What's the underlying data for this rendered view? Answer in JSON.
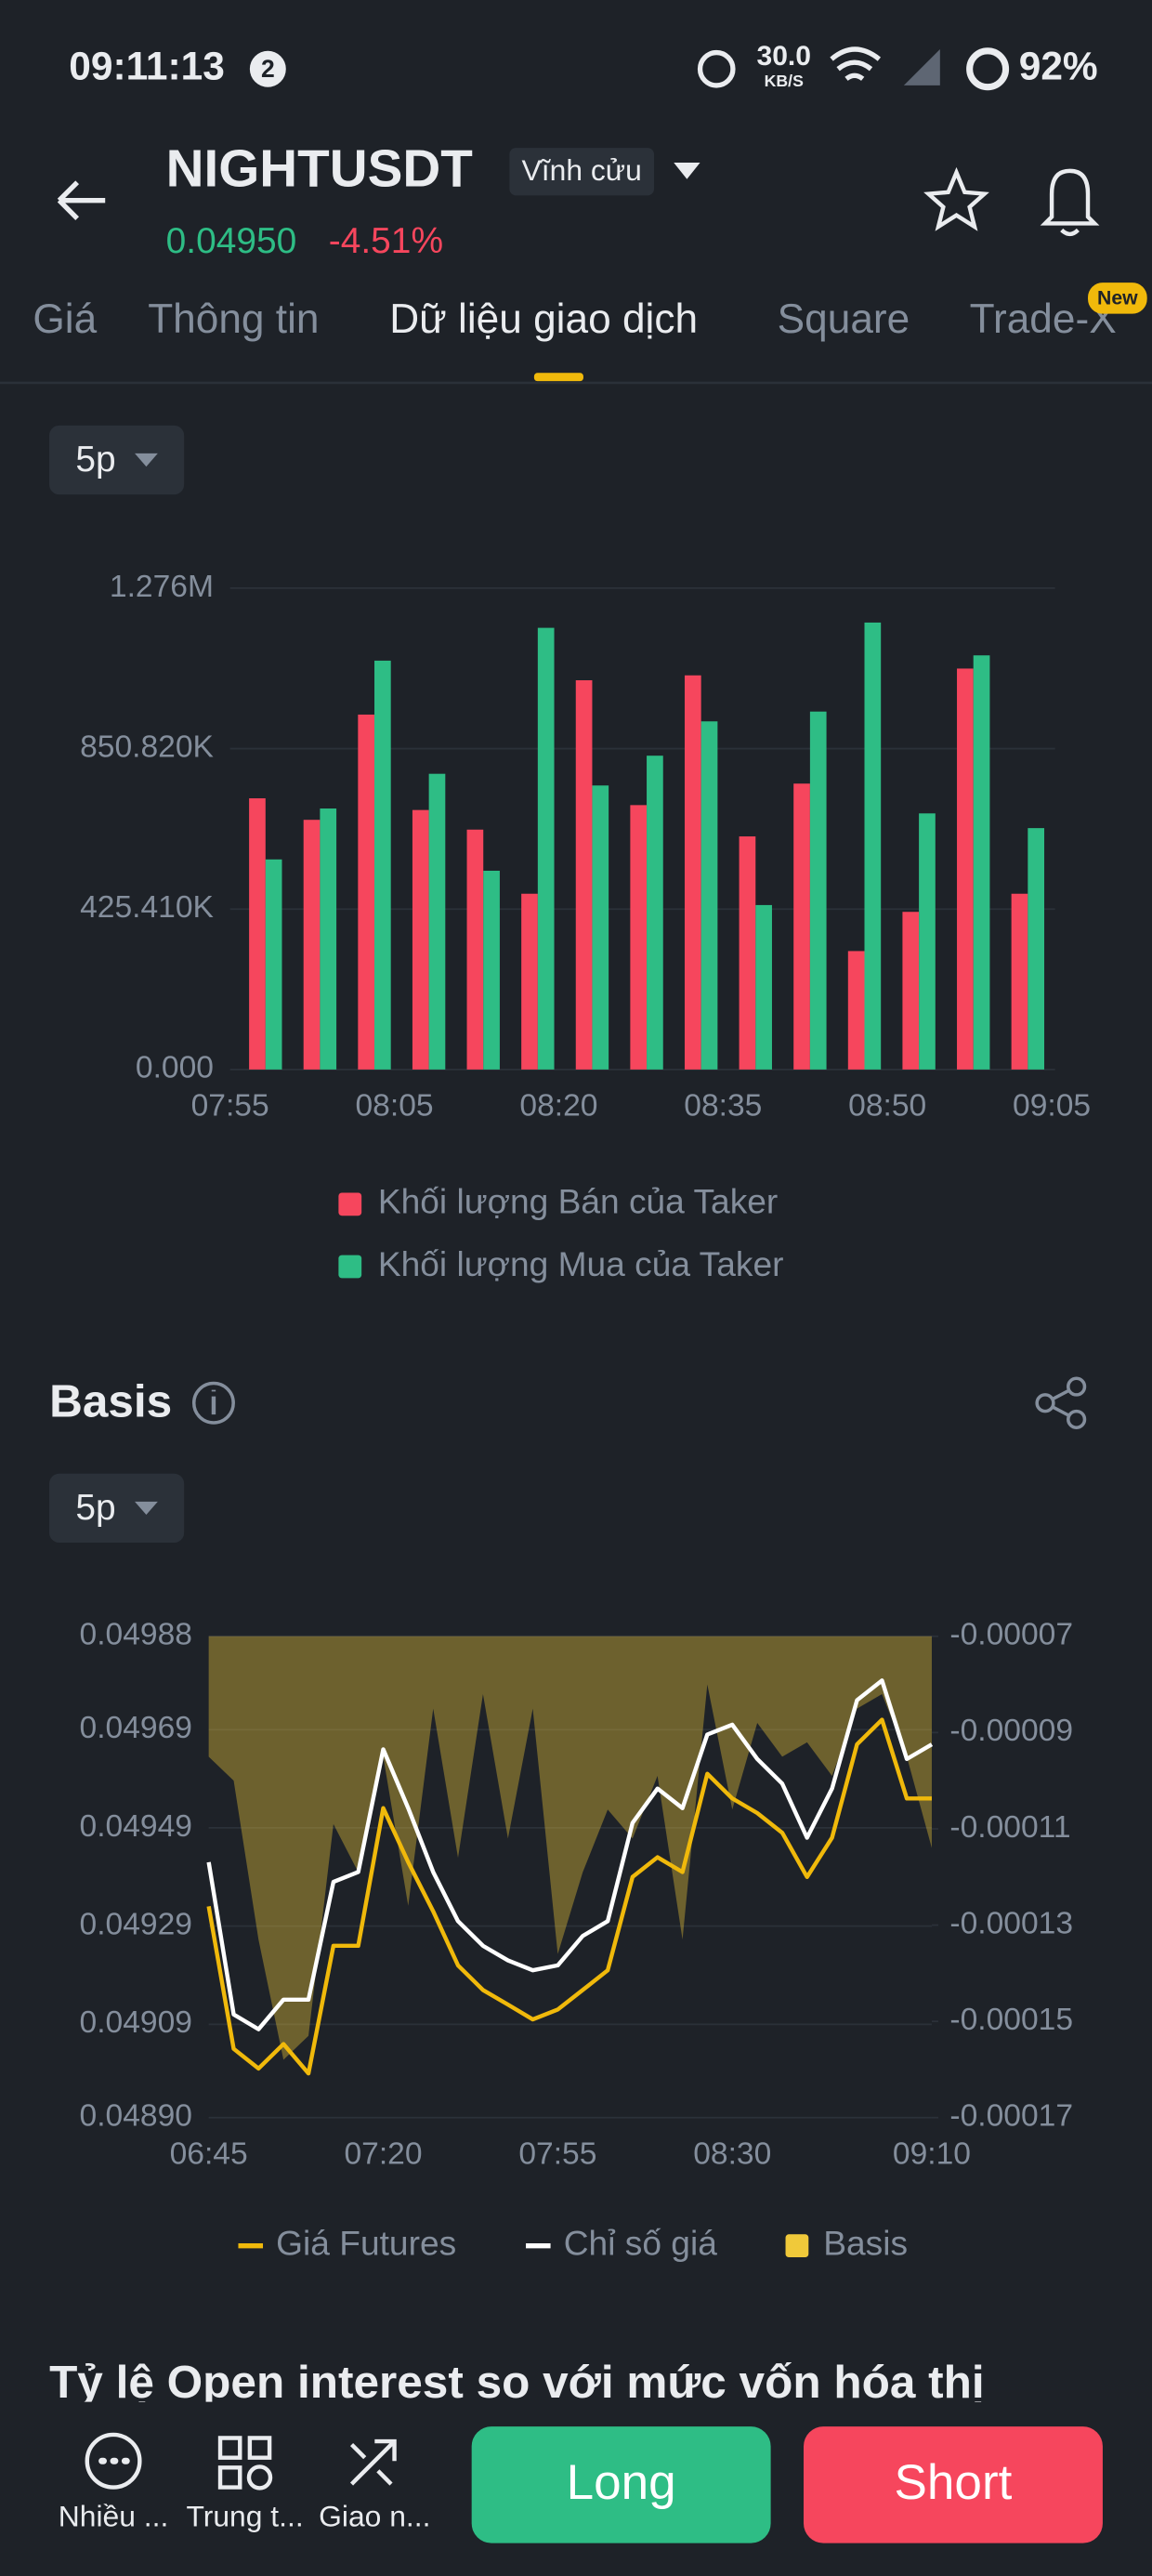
{
  "status_bar": {
    "time": "09:11:13",
    "notification_count": "2",
    "speed": "30.0",
    "speed_unit": "KB/S",
    "battery": "92%"
  },
  "header": {
    "symbol": "NIGHTUSDT",
    "contract": "Vĩnh cửu",
    "price": "0.04950",
    "change": "-4.51%"
  },
  "tabs": [
    "Giá",
    "Thông tin",
    "Dữ liệu giao dịch",
    "Square",
    "Trade-X"
  ],
  "tab_badge": "New",
  "interval_1": "5p",
  "chart_data": [
    {
      "type": "bar",
      "x_labels": [
        "07:55",
        "08:05",
        "08:20",
        "08:35",
        "08:50",
        "09:05"
      ],
      "series": [
        {
          "name": "Khối lượng Bán của Taker",
          "color": "#f6465d",
          "values": [
            719000,
            662000,
            941000,
            688000,
            636000,
            466000,
            1032000,
            701000,
            1045000,
            618000,
            758000,
            314000,
            418000,
            1063000,
            466000
          ]
        },
        {
          "name": "Khối lượng Mua của Taker",
          "color": "#2ebd85",
          "values": [
            557000,
            692000,
            1084000,
            784000,
            527000,
            1171000,
            753000,
            832000,
            923000,
            436000,
            949000,
            1185000,
            679000,
            1098000,
            640000
          ]
        }
      ],
      "ylim": [
        0,
        1276230
      ],
      "yticks": [
        {
          "value": 0,
          "label": "0.000"
        },
        {
          "value": 425410,
          "label": "425.410K"
        },
        {
          "value": 850820,
          "label": "850.820K"
        },
        {
          "value": 1276230,
          "label": "1.276M"
        }
      ],
      "grid": true
    },
    {
      "type": "line",
      "categories": [
        "06:45",
        null,
        null,
        null,
        null,
        null,
        null,
        "07:20",
        null,
        null,
        null,
        null,
        null,
        null,
        "07:55",
        null,
        null,
        null,
        null,
        null,
        null,
        "08:30",
        null,
        null,
        null,
        null,
        null,
        null,
        null,
        "09:10"
      ],
      "series": [
        {
          "name": "Giá Futures",
          "color": "#f0b90b",
          "axis": "y",
          "values": [
            0.04933,
            0.04904,
            0.049,
            0.04905,
            0.04899,
            0.04925,
            0.04925,
            0.04953,
            0.04942,
            0.04932,
            0.04921,
            0.04916,
            0.04913,
            0.0491,
            0.04912,
            0.04916,
            0.0492,
            0.04939,
            0.04943,
            0.0494,
            0.0496,
            0.04955,
            0.04952,
            0.04948,
            0.04939,
            0.04947,
            0.04966,
            0.04971,
            0.04955,
            0.04955
          ]
        },
        {
          "name": "Chỉ số giá",
          "color": "#ffffff",
          "axis": "y",
          "values": [
            0.04942,
            0.04911,
            0.04908,
            0.04914,
            0.04914,
            0.04938,
            0.0494,
            0.04965,
            0.04953,
            0.0494,
            0.0493,
            0.04925,
            0.04922,
            0.0492,
            0.04921,
            0.04927,
            0.0493,
            0.0495,
            0.04957,
            0.04953,
            0.04968,
            0.0497,
            0.04963,
            0.04958,
            0.04947,
            0.04957,
            0.04975,
            0.04979,
            0.04963,
            0.04966
          ]
        },
        {
          "name": "Basis",
          "color": "#f0c93a",
          "axis": "y2",
          "style": "area",
          "values": [
            -9.5e-05,
            -0.0001,
            -0.000133,
            -0.000158,
            -0.000153,
            -0.000109,
            -0.000119,
            -9.5e-05,
            -0.000126,
            -8.5e-05,
            -0.000116,
            -8.2e-05,
            -0.000112,
            -8.5e-05,
            -0.000136,
            -0.000119,
            -0.000106,
            -0.000112,
            -9.9e-05,
            -0.000133,
            -8e-05,
            -0.000106,
            -8.8e-05,
            -9.5e-05,
            -9.2e-05,
            -9.9e-05,
            -8.5e-05,
            -8.2e-05,
            -9.5e-05,
            -0.000114
          ]
        }
      ],
      "ylim": [
        0.0489,
        0.04988
      ],
      "yticks": [
        {
          "value": 0.04988,
          "label": "0.04988"
        },
        {
          "value": 0.04969,
          "label": "0.04969"
        },
        {
          "value": 0.04949,
          "label": "0.04949"
        },
        {
          "value": 0.04929,
          "label": "0.04929"
        },
        {
          "value": 0.04909,
          "label": "0.04909"
        },
        {
          "value": 0.0489,
          "label": "0.04890"
        }
      ],
      "y2lim": [
        -0.00017,
        -7e-05
      ],
      "y2ticks": [
        -7e-05,
        -9e-05,
        -0.00011,
        -0.00013,
        -0.00015,
        -0.00017
      ],
      "grid": true
    }
  ],
  "basis_section": {
    "title": "Basis",
    "interval": "5p"
  },
  "next_section_title": "Tỷ lệ Open interest so với mức vốn hóa thị",
  "bottom_bar": {
    "items": [
      "Nhiều ...",
      "Trung t...",
      "Giao n..."
    ],
    "long": "Long",
    "short": "Short"
  }
}
